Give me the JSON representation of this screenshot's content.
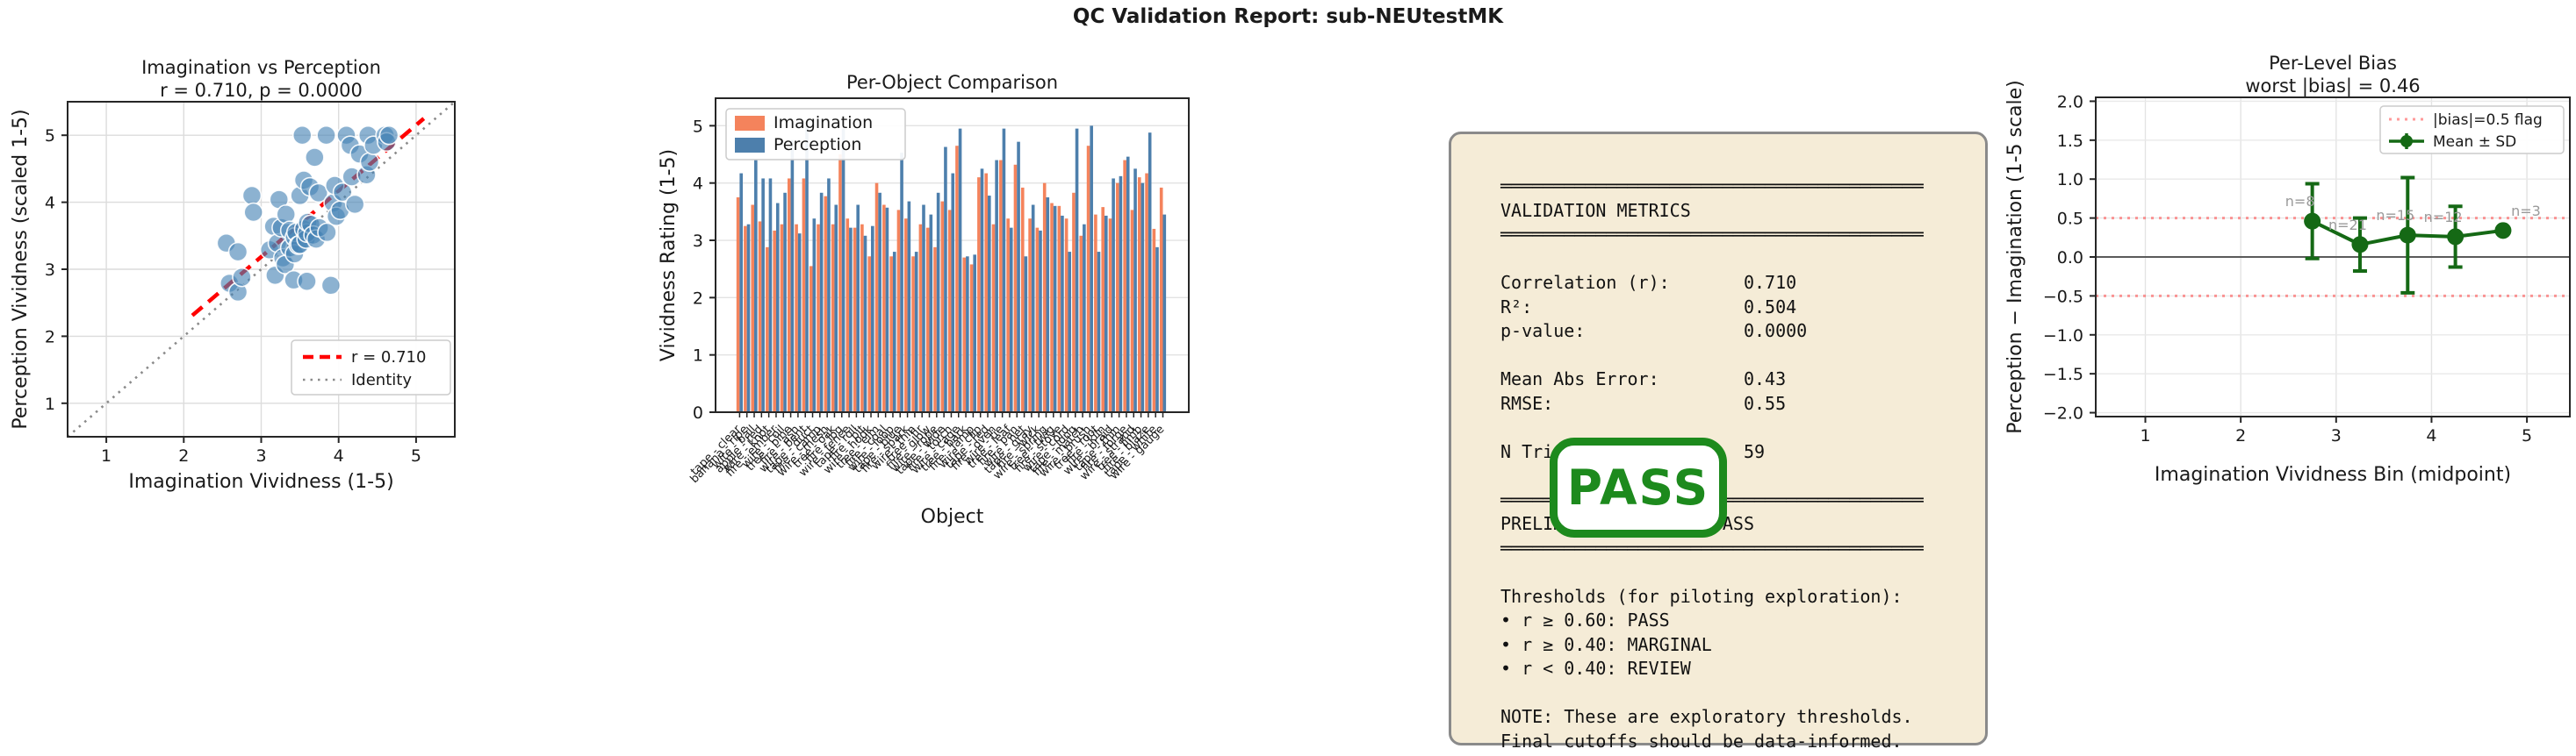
{
  "report": {
    "title": "QC Validation Report: sub-NEUtestMK"
  },
  "colors": {
    "imagination_orange": "#f4835c",
    "perception_blue": "#4d7fac",
    "scatter_blue": "rgba(70,130,180,0.62)",
    "fit_red": "#ff0000",
    "identity_gray": "#8a8a8a",
    "bias_green": "#156915",
    "flag_red": "rgba(255,70,70,0.55)",
    "zero_gray": "#5a5a5a",
    "grid_gray": "#dcdcdc",
    "box_wheat": "#f5ecd7",
    "stamp_green": "#1d8a1d",
    "n_label_gray": "#9a9a9a"
  },
  "chart_data": [
    {
      "type": "scatter",
      "title": "Imagination vs Perception",
      "subtitle": "r = 0.710, p = 0.0000",
      "xlabel": "Imagination Vividness (1-5)",
      "ylabel": "Perception Vividness (scaled 1-5)",
      "xlim": [
        0.5,
        5.5
      ],
      "ylim": [
        0.5,
        5.5
      ],
      "xticks": [
        "1",
        "2",
        "3",
        "4",
        "5"
      ],
      "yticks": [
        "1",
        "2",
        "3",
        "4",
        "5"
      ],
      "grid": true,
      "legend_position": "lower right",
      "legend": [
        {
          "label": "r = 0.710",
          "style": "red-dashed"
        },
        {
          "label": "Identity",
          "style": "gray-dotted"
        }
      ],
      "x": [
        2.55,
        2.7,
        2.59,
        2.7,
        2.75,
        2.88,
        2.9,
        3.11,
        3.16,
        3.18,
        3.21,
        3.23,
        3.26,
        3.28,
        3.31,
        3.32,
        3.37,
        3.37,
        3.42,
        3.43,
        3.43,
        3.45,
        3.48,
        3.5,
        3.5,
        3.53,
        3.55,
        3.55,
        3.58,
        3.59,
        3.59,
        3.6,
        3.63,
        3.64,
        3.67,
        3.69,
        3.71,
        3.74,
        3.75,
        3.84,
        3.85,
        3.9,
        3.93,
        3.95,
        3.97,
        4.02,
        4.05,
        4.1,
        4.15,
        4.17,
        4.21,
        4.27,
        4.36,
        4.38,
        4.4,
        4.45,
        4.6,
        4.62,
        4.65
      ],
      "y": [
        3.39,
        3.26,
        2.79,
        2.66,
        2.88,
        4.1,
        3.85,
        3.29,
        3.64,
        2.91,
        3.39,
        4.04,
        3.62,
        3.17,
        3.07,
        3.82,
        3.58,
        3.32,
        2.84,
        3.48,
        3.23,
        3.55,
        3.36,
        4.1,
        3.37,
        5.0,
        4.33,
        3.6,
        3.45,
        3.54,
        2.82,
        3.7,
        4.23,
        3.67,
        3.51,
        4.67,
        3.45,
        4.14,
        3.62,
        5.0,
        3.55,
        2.76,
        3.99,
        4.25,
        3.79,
        3.88,
        4.15,
        5.0,
        4.85,
        4.38,
        3.97,
        4.72,
        4.41,
        5.0,
        4.6,
        4.85,
        5.0,
        4.9,
        5.0
      ],
      "fit_line": {
        "x": [
          2.11,
          5.1
        ],
        "y": [
          2.31,
          5.25
        ]
      },
      "identity_line": {
        "x": [
          0.5,
          5.5
        ],
        "y": [
          0.5,
          5.5
        ]
      }
    },
    {
      "type": "bar",
      "title": "Per-Object Comparison",
      "xlabel": "Object",
      "ylabel": "Vividness Rating (1-5)",
      "ylim": [
        0,
        5.48
      ],
      "yticks": [
        "0",
        "1",
        "2",
        "3",
        "4",
        "5"
      ],
      "grid": "horizontal",
      "legend_position": "upper left",
      "series": [
        {
          "name": "Imagination",
          "values": [
            3.75,
            3.25,
            3.62,
            3.33,
            2.88,
            3.17,
            3.28,
            4.08,
            3.28,
            4.08,
            2.55,
            3.28,
            3.77,
            3.28,
            4.5,
            3.38,
            3.22,
            3.28,
            2.72,
            4.0,
            3.62,
            2.72,
            3.53,
            3.38,
            2.72,
            3.28,
            3.22,
            2.88,
            3.68,
            3.53,
            4.65,
            2.7,
            2.58,
            4.1,
            4.17,
            3.28,
            4.4,
            3.38,
            4.32,
            3.92,
            3.38,
            3.22,
            4.0,
            3.65,
            3.6,
            3.38,
            3.83,
            3.08,
            4.65,
            3.45,
            3.58,
            3.38,
            4.0,
            4.4,
            3.53,
            4.1,
            4.17,
            3.2,
            3.92
          ]
        },
        {
          "name": "Perception",
          "values": [
            4.17,
            3.28,
            4.4,
            4.08,
            4.08,
            3.65,
            3.83,
            4.75,
            3.12,
            5.0,
            3.38,
            3.83,
            4.08,
            3.62,
            4.95,
            3.22,
            3.62,
            3.08,
            3.25,
            3.83,
            3.57,
            2.8,
            4.53,
            3.68,
            2.8,
            3.62,
            3.45,
            3.83,
            4.63,
            4.17,
            4.95,
            2.72,
            2.75,
            4.25,
            3.78,
            4.4,
            4.95,
            3.22,
            4.72,
            2.72,
            3.62,
            3.17,
            3.75,
            3.6,
            3.43,
            2.8,
            4.95,
            3.28,
            5.0,
            2.8,
            3.43,
            4.08,
            4.12,
            4.46,
            4.25,
            4.0,
            4.88,
            2.88,
            3.45
          ]
        }
      ],
      "categories": [
        "tape - clear",
        "banana - ripe",
        "wire - ball",
        "apple - red",
        "wire - knot",
        "fire - ember",
        "wire - coil",
        "tree - pine",
        "fire - ash",
        "wire - bent",
        "tape - duct",
        "fire - camp",
        "wire - mesh",
        "tree - oak",
        "fire - log",
        "wire - fence",
        "tape - roll",
        "fire - pit",
        "wire - hook",
        "tree - elm",
        "fire - coal",
        "wire - loop",
        "tape - blue",
        "fire - spark",
        "wire - thin",
        "tree - fir",
        "fire - glow",
        "wire - rope",
        "tape - wide",
        "fire - torch",
        "wire - cage",
        "tree - bark",
        "fire - lamp",
        "wire - clip",
        "tape - red",
        "fire - oven",
        "wire - tie",
        "tree - leaf",
        "fire - pan",
        "wire - net",
        "tape - gray",
        "fire - wick",
        "wire - spring",
        "tree - twig",
        "fire - stove",
        "wire - cord",
        "tape - long",
        "fire - match",
        "wire - brush",
        "tree - root",
        "fire - kiln",
        "wire - braid",
        "tape - thin",
        "fire - forge",
        "wire - strand",
        "tree - limb",
        "fire - blaze",
        "tape - white",
        "wire - gauge"
      ]
    },
    {
      "type": "line",
      "title": "Per-Level Bias",
      "subtitle": "worst |bias| = 0.46",
      "xlabel": "Imagination Vividness Bin (midpoint)",
      "ylabel": "Perception − Imagination (1-5 scale)",
      "xlim": [
        0.48,
        5.45
      ],
      "ylim": [
        -2.05,
        2.05
      ],
      "xticks": [
        "1",
        "2",
        "3",
        "4",
        "5"
      ],
      "yticks": [
        "−2.0",
        "−1.5",
        "−1.0",
        "−0.5",
        "0.0",
        "0.5",
        "1.0",
        "1.5",
        "2.0"
      ],
      "grid": true,
      "legend_position": "upper right",
      "legend": [
        {
          "label": "|bias|=0.5 flag",
          "style": "red-dotted"
        },
        {
          "label": "Mean ± SD",
          "style": "green-errorbar"
        }
      ],
      "x": [
        2.75,
        3.25,
        3.75,
        4.25,
        4.75
      ],
      "mean": [
        0.46,
        0.16,
        0.28,
        0.26,
        0.34
      ],
      "sd": [
        0.48,
        0.34,
        0.74,
        0.39,
        0.02
      ],
      "n_labels": [
        "n=8",
        "n=21",
        "n=15",
        "n=12",
        "n=3"
      ],
      "flag_lines": [
        0.5,
        -0.5
      ],
      "zero_line": 0
    }
  ],
  "metrics_panel": {
    "stamp": "PASS",
    "lines": [
      "════════════════════════════════════════",
      "VALIDATION METRICS",
      "════════════════════════════════════════",
      "",
      "Correlation (r):       0.710",
      "R²:                    0.504",
      "p-value:               0.0000",
      "",
      "Mean Abs Error:        0.43",
      "RMSE:                  0.55",
      "",
      "N Trials:              59",
      "",
      "════════════════════════════════════════",
      "PRELIMINARY STATUS: PASS",
      "════════════════════════════════════════",
      "",
      "Thresholds (for piloting exploration):",
      "• r ≥ 0.60: PASS",
      "• r ≥ 0.40: MARGINAL",
      "• r < 0.40: REVIEW",
      "",
      "NOTE: These are exploratory thresholds.",
      "Final cutoffs should be data-informed."
    ]
  }
}
